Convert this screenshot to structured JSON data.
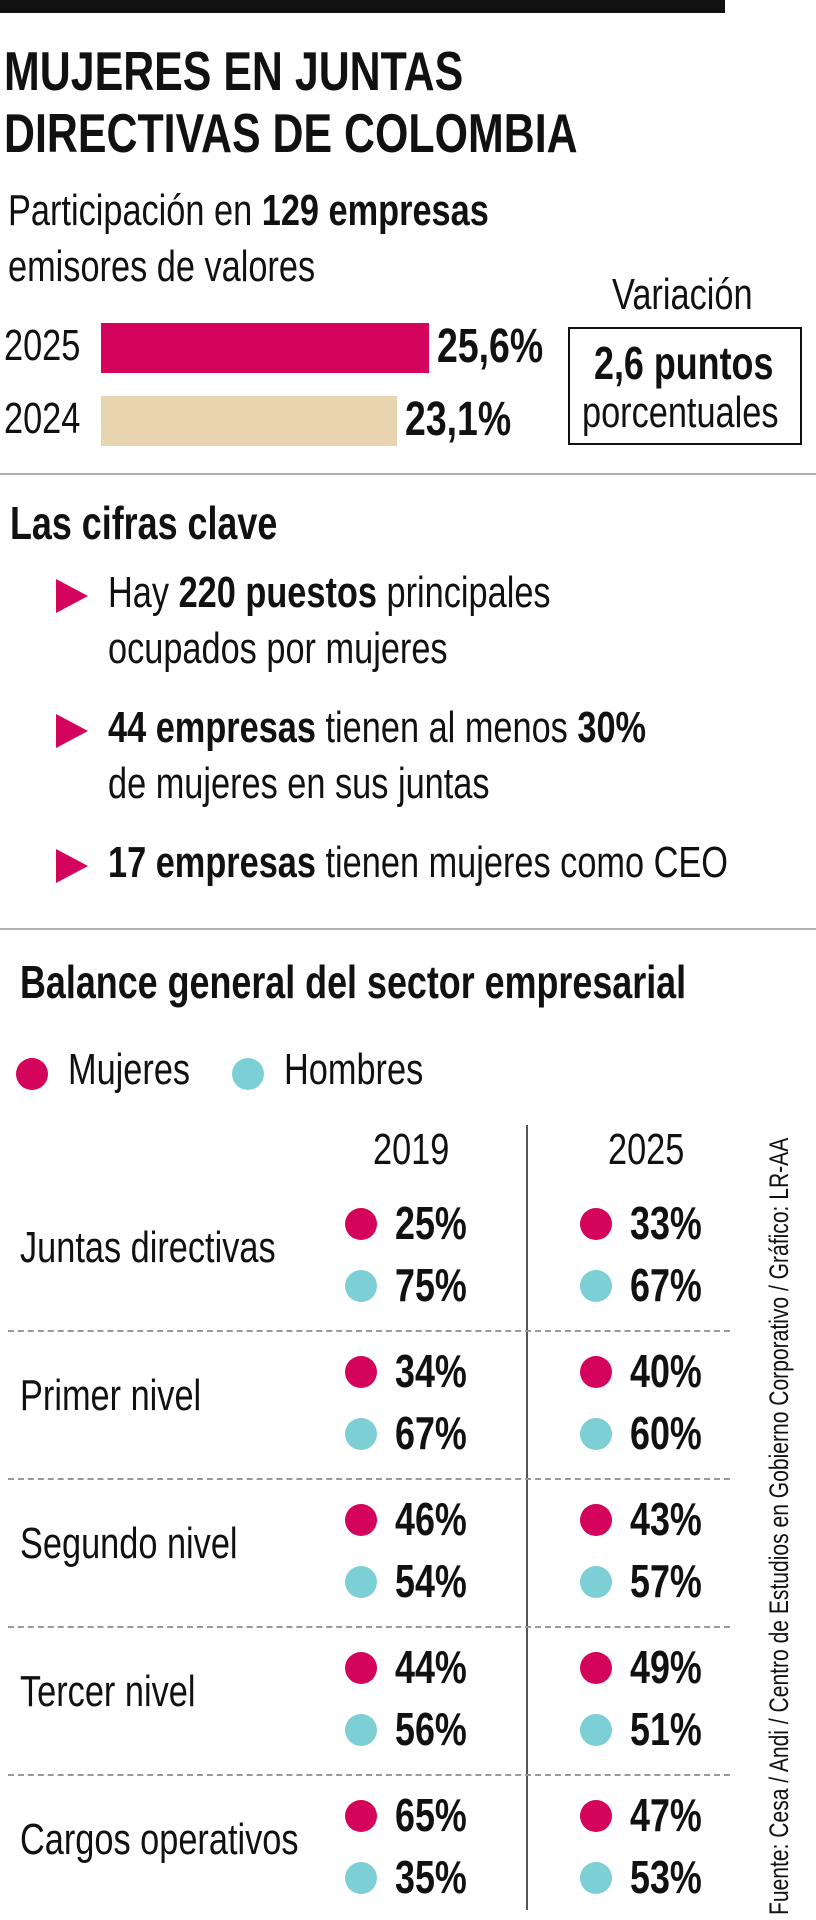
{
  "title_line1": "MUJERES EN JUNTAS",
  "title_line2": "DIRECTIVAS DE COLOMBIA",
  "subtitle_pre": "Participación en ",
  "subtitle_bold": "129 empresas",
  "subtitle_line2": "emisores de valores",
  "variation": {
    "label": "Variación",
    "value": "2,6 puntos",
    "unit": "porcentuales"
  },
  "key_section": {
    "heading": "Las cifras clave",
    "items": [
      {
        "line1": [
          [
            "Hay ",
            false
          ],
          [
            "220 puestos",
            true
          ],
          [
            " principales",
            false
          ]
        ],
        "line2": "ocupados por mujeres"
      },
      {
        "line1": [
          [
            "44 empresas",
            true
          ],
          [
            " tienen al menos ",
            false
          ],
          [
            "30%",
            true
          ]
        ],
        "line2": "de mujeres en sus juntas"
      },
      {
        "line1": [
          [
            "17 empresas",
            true
          ],
          [
            " tienen mujeres como CEO",
            false
          ]
        ],
        "line2": ""
      }
    ]
  },
  "balance": {
    "heading": "Balance general del sector empresarial",
    "legend_women": "Mujeres",
    "legend_men": "Hombres"
  },
  "colors": {
    "women": "#d4035c",
    "men": "#7ccfd4",
    "bar_2024": "#e8d5b0"
  },
  "source": "Fuente: Cesa / Andi / Centro de Estudios en Gobierno Corporativo / Gráfico: LR-AA",
  "chart_data": [
    {
      "type": "bar",
      "categories": [
        "2025",
        "2024"
      ],
      "values": [
        25.6,
        23.1
      ],
      "value_labels": [
        "25,6%",
        "23,1%"
      ],
      "title": "Participación en 129 empresas emisores de valores",
      "colors": [
        "#d4035c",
        "#e8d5b0"
      ]
    },
    {
      "type": "table",
      "title": "Balance general del sector empresarial",
      "columns": [
        "2019",
        "2025"
      ],
      "rows": [
        {
          "label": "Juntas directivas",
          "2019": {
            "mujeres": "25%",
            "hombres": "75%"
          },
          "2025": {
            "mujeres": "33%",
            "hombres": "67%"
          }
        },
        {
          "label": "Primer nivel",
          "2019": {
            "mujeres": "34%",
            "hombres": "67%"
          },
          "2025": {
            "mujeres": "40%",
            "hombres": "60%"
          }
        },
        {
          "label": "Segundo nivel",
          "2019": {
            "mujeres": "46%",
            "hombres": "54%"
          },
          "2025": {
            "mujeres": "43%",
            "hombres": "57%"
          }
        },
        {
          "label": "Tercer nivel",
          "2019": {
            "mujeres": "44%",
            "hombres": "56%"
          },
          "2025": {
            "mujeres": "49%",
            "hombres": "51%"
          }
        },
        {
          "label": "Cargos operativos",
          "2019": {
            "mujeres": "65%",
            "hombres": "35%"
          },
          "2025": {
            "mujeres": "47%",
            "hombres": "53%"
          }
        }
      ]
    }
  ]
}
